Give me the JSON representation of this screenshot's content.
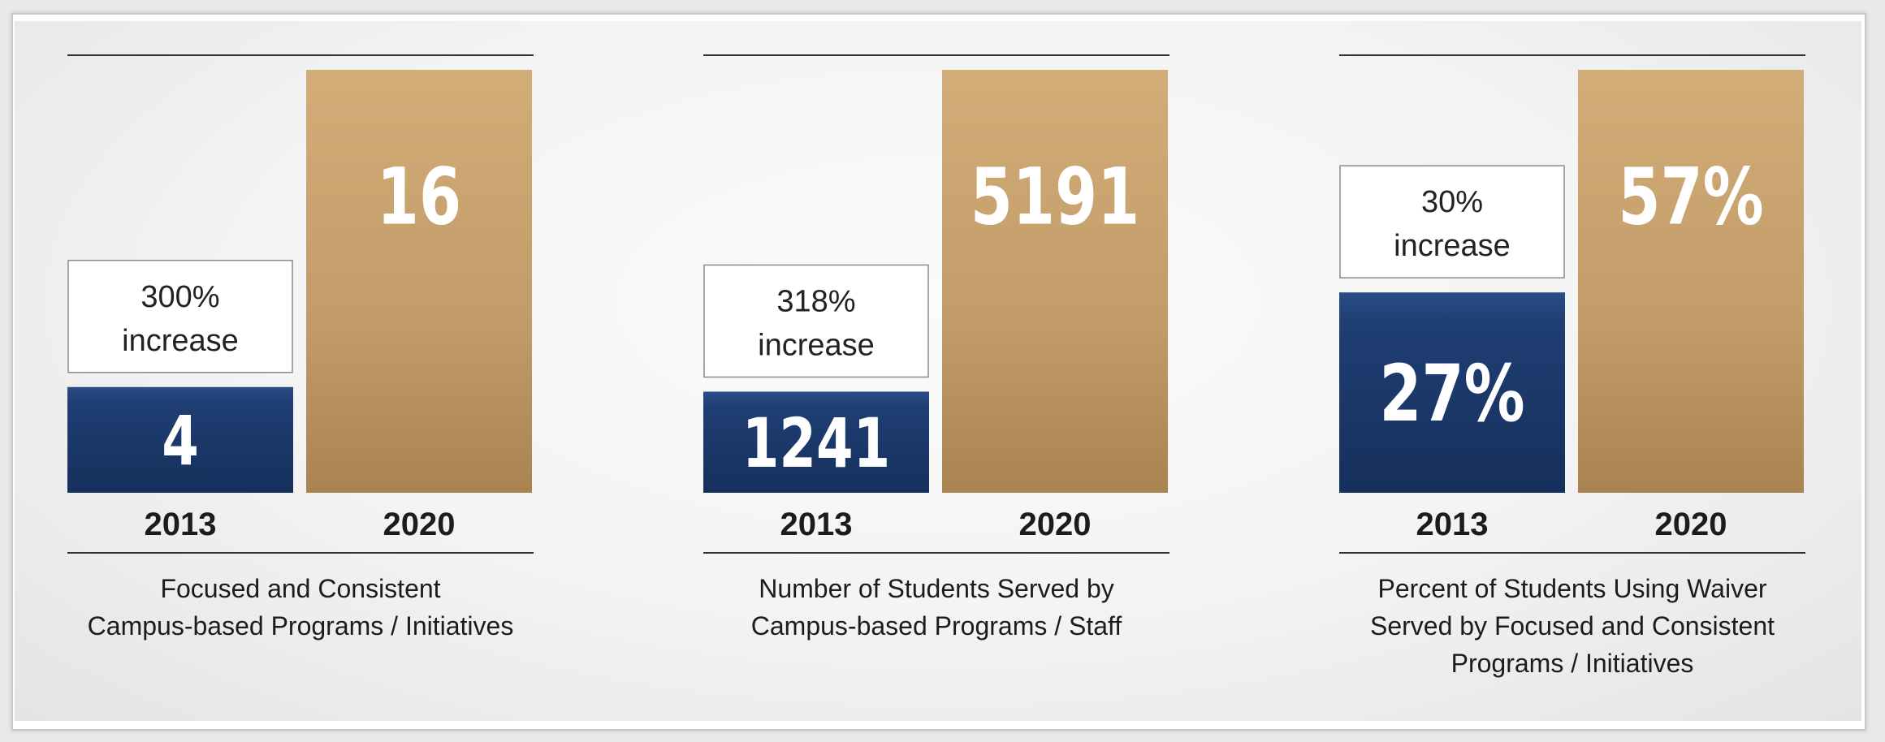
{
  "colors": {
    "bar_2013": "#1f3e73",
    "bar_2020": "#c49e6b",
    "rule": "#333333"
  },
  "chart_data": [
    {
      "type": "bar",
      "categories": [
        "2013",
        "2020"
      ],
      "values": [
        4,
        16
      ],
      "value_labels": [
        "4",
        "16"
      ],
      "callout": [
        "300%",
        "increase"
      ],
      "caption": [
        "Focused and Consistent",
        "Campus-based Programs / Initiatives"
      ]
    },
    {
      "type": "bar",
      "categories": [
        "2013",
        "2020"
      ],
      "values": [
        1241,
        5191
      ],
      "value_labels": [
        "1241",
        "5191"
      ],
      "callout": [
        "318%",
        "increase"
      ],
      "caption": [
        "Number of Students Served by",
        "Campus-based Programs / Staff"
      ]
    },
    {
      "type": "bar",
      "categories": [
        "2013",
        "2020"
      ],
      "values": [
        27,
        57
      ],
      "value_labels": [
        "27%",
        "57%"
      ],
      "callout": [
        "30%",
        "increase"
      ],
      "caption": [
        "Percent of Students Using Waiver",
        "Served by Focused and Consistent",
        "Programs / Initiatives"
      ]
    }
  ]
}
